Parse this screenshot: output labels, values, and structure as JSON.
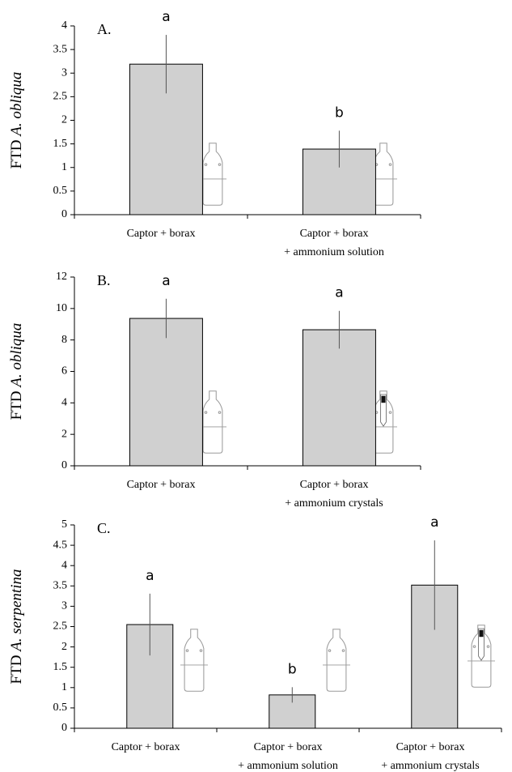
{
  "chart_data": [
    {
      "type": "bar",
      "panel_label": "A.",
      "ylabel_prefix": "FTD",
      "ylabel_species": "A. obliqua",
      "categories": [
        [
          "Captor + borax"
        ],
        [
          "Captor + borax",
          "+ ammonium solution"
        ]
      ],
      "values": [
        3.19,
        1.39
      ],
      "errors": [
        0.62,
        0.39
      ],
      "annotations": [
        "a",
        "b"
      ],
      "color": "#d0d0d0",
      "ylim": [
        0,
        4
      ],
      "yticks": [
        0,
        0.5,
        1,
        1.5,
        2,
        2.5,
        3,
        3.5,
        4
      ]
    },
    {
      "type": "bar",
      "panel_label": "B.",
      "ylabel_prefix": "FTD",
      "ylabel_species": "A. obliqua",
      "categories": [
        [
          "Captor + borax"
        ],
        [
          "Captor + borax",
          "+ ammonium crystals"
        ]
      ],
      "values": [
        9.37,
        8.65
      ],
      "errors": [
        1.25,
        1.2
      ],
      "annotations": [
        "a",
        "a"
      ],
      "color": "#d0d0d0",
      "ylim": [
        0,
        12
      ],
      "yticks": [
        0,
        2,
        4,
        6,
        8,
        10,
        12
      ]
    },
    {
      "type": "bar",
      "panel_label": "C.",
      "ylabel_prefix": "FTD",
      "ylabel_species": "A. serpentina",
      "categories": [
        [
          "Captor + borax"
        ],
        [
          "Captor + borax",
          "+ ammonium solution"
        ],
        [
          "Captor + borax",
          "+ ammonium crystals"
        ]
      ],
      "values": [
        2.55,
        0.82,
        3.52
      ],
      "errors": [
        0.76,
        0.19,
        1.1
      ],
      "annotations": [
        "a",
        "b",
        "a"
      ],
      "color": "#d0d0d0",
      "ylim": [
        0,
        5
      ],
      "yticks": [
        0,
        0.5,
        1,
        1.5,
        2,
        2.5,
        3,
        3.5,
        4,
        4.5,
        5
      ]
    }
  ]
}
